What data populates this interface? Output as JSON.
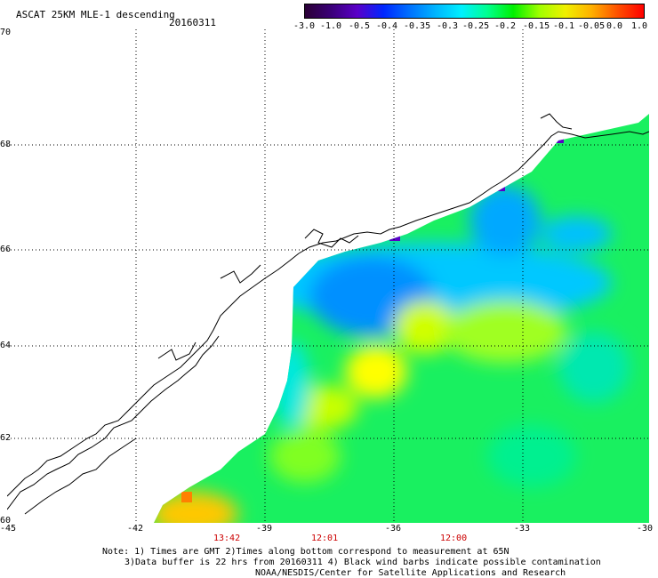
{
  "header": {
    "title": "ASCAT 25KM MLE-1 descending",
    "date": "20160311"
  },
  "colorbar": {
    "labels": [
      "-3.0",
      "-1.0",
      "-0.5",
      "-0.4",
      "-0.35",
      "-0.3",
      "-0.25",
      "-0.2",
      "-0.15",
      "-0.1",
      "-0.05",
      "0.0",
      "1.0"
    ],
    "colors": [
      "#2a0035",
      "#3a0078",
      "#5a00c8",
      "#0026ff",
      "#0070ff",
      "#00b4ff",
      "#00f0ff",
      "#00ff90",
      "#00f000",
      "#a0ff00",
      "#f0f000",
      "#ffb000",
      "#ff5000",
      "#ff0000"
    ]
  },
  "axes": {
    "lat_labels": [
      "70",
      "68",
      "66",
      "64",
      "62",
      "60"
    ],
    "lon_labels": [
      "-45",
      "-42",
      "-39",
      "-36",
      "-33",
      "-30"
    ]
  },
  "times": [
    "13:42",
    "12:01",
    "12:00"
  ],
  "notes": {
    "line1": "Note: 1) Times are GMT 2)Times along bottom correspond to measurement at 65N",
    "line2": "3)Data buffer is 22 hrs from 20160311 4) Black wind barbs indicate possible contamination",
    "line3": "NOAA/NESDIS/Center for Satellite Applications and Research"
  }
}
